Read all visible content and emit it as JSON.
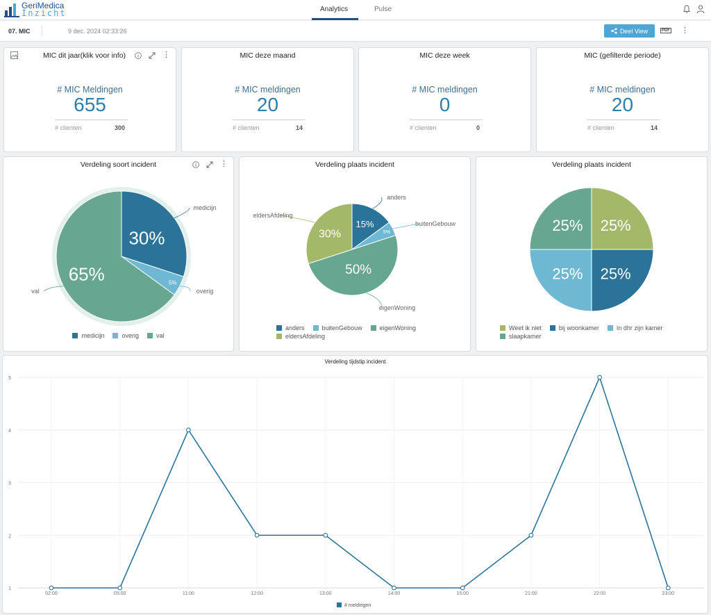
{
  "app": {
    "logo_line1": "GeriMedica",
    "logo_line2": "Inzicht"
  },
  "nav": {
    "tabs": [
      {
        "label": "Analytics",
        "active": true
      },
      {
        "label": "Pulse",
        "active": false
      }
    ]
  },
  "header": {
    "title": "07. MIC",
    "date": "9 dec. 2024 02:33:26",
    "share_label": "Deel View",
    "pdf_label": "PDF"
  },
  "colors": {
    "dark_blue": "#2b7399",
    "light_blue": "#6fb8d3",
    "teal": "#67a690",
    "olive": "#a4b86a",
    "line": "#2b7399"
  },
  "kpis": [
    {
      "title": "MIC dit jaar(klik voor info)",
      "label": "# MIC Meldingen",
      "value": "655",
      "sub_label": "# clienten",
      "sub_value": "300"
    },
    {
      "title": "MIC deze maand",
      "label": "# MIC meldingen",
      "value": "20",
      "sub_label": "# clienten",
      "sub_value": "14"
    },
    {
      "title": "MIC deze week",
      "label": "# MIC meldingen",
      "value": "0",
      "sub_label": "# clienten",
      "sub_value": "0"
    },
    {
      "title": "MIC (gefilterde periode)",
      "label": "# MIC meldingen",
      "value": "20",
      "sub_label": "# clienten",
      "sub_value": "14"
    }
  ],
  "pies": [
    {
      "title": "Verdeling soort incident"
    },
    {
      "title": "Verdeling plaats incident"
    },
    {
      "title": "Verdeling plaats incident"
    }
  ],
  "line_chart": {
    "title": "Verdeling tijdstip incident"
  },
  "chart_data": [
    {
      "type": "pie",
      "title": "Verdeling soort incident",
      "slices": [
        {
          "label": "medicijn",
          "value": 30,
          "display": "30%",
          "color": "#2b7399"
        },
        {
          "label": "overig",
          "value": 5,
          "display": "5%",
          "color": "#6fb8d3"
        },
        {
          "label": "val",
          "value": 65,
          "display": "65%",
          "color": "#67a690"
        }
      ],
      "legend": [
        "medicijn",
        "overig",
        "val"
      ],
      "legend_placement": "bottom"
    },
    {
      "type": "pie",
      "title": "Verdeling plaats incident",
      "slices": [
        {
          "label": "anders",
          "value": 15,
          "display": "15%",
          "color": "#2b7399"
        },
        {
          "label": "buitenGebouw",
          "value": 5,
          "display": "5%",
          "color": "#6fb8d3"
        },
        {
          "label": "eigenWoning",
          "value": 50,
          "display": "50%",
          "color": "#67a690"
        },
        {
          "label": "eldersAfdeling",
          "value": 30,
          "display": "30%",
          "color": "#a4b86a"
        }
      ],
      "legend": [
        "anders",
        "buitenGebouw",
        "eigenWoning",
        "eldersAfdeling"
      ],
      "legend_placement": "bottom"
    },
    {
      "type": "pie",
      "title": "Verdeling plaats incident",
      "slices": [
        {
          "label": "Weet ik niet",
          "value": 25,
          "display": "25%",
          "color": "#a4b86a"
        },
        {
          "label": "bij woonkamer",
          "value": 25,
          "display": "25%",
          "color": "#2b7399"
        },
        {
          "label": "In dhr zijn kamer",
          "value": 25,
          "display": "25%",
          "color": "#6fb8d3"
        },
        {
          "label": "slaapkamer",
          "value": 25,
          "display": "25%",
          "color": "#67a690"
        }
      ],
      "legend": [
        "Weet ik niet",
        "bij woonkamer",
        "In dhr zijn kamer",
        "slaapkamer"
      ],
      "legend_placement": "bottom"
    },
    {
      "type": "line",
      "title": "Verdeling tijdstip incident",
      "categories": [
        "02:00",
        "05:00",
        "11:00",
        "12:00",
        "13:00",
        "14:00",
        "15:00",
        "21:00",
        "22:00",
        "23:00"
      ],
      "series": [
        {
          "name": "# meldingen",
          "values": [
            1,
            1,
            4,
            2,
            2,
            1,
            1,
            2,
            5,
            1
          ],
          "color": "#2b7399"
        }
      ],
      "ylim": [
        1,
        5
      ],
      "yticks": [
        1,
        2,
        3,
        4,
        5
      ],
      "grid": true,
      "legend_placement": "bottom"
    }
  ]
}
